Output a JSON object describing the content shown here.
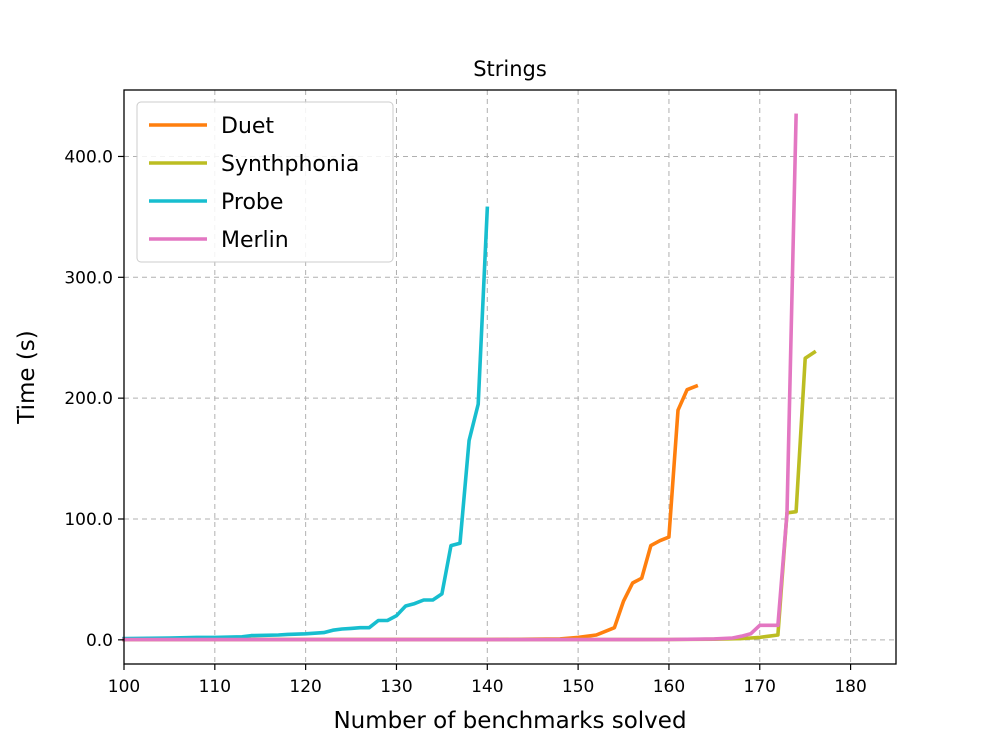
{
  "chart_data": {
    "type": "line",
    "title": "Strings",
    "xlabel": "Number of benchmarks solved",
    "ylabel": "Time (s)",
    "xlim": [
      100,
      185
    ],
    "ylim": [
      -20,
      455
    ],
    "x_ticks": [
      100,
      110,
      120,
      130,
      140,
      150,
      160,
      170,
      180
    ],
    "y_ticks": [
      0,
      100,
      200,
      300,
      400
    ],
    "x_tick_labels": [
      "100",
      "110",
      "120",
      "130",
      "140",
      "150",
      "160",
      "170",
      "180"
    ],
    "y_tick_labels": [
      "0.0",
      "100.0",
      "200.0",
      "300.0",
      "400.0"
    ],
    "grid": true,
    "legend_position": "top-left",
    "series": [
      {
        "name": "Duet",
        "color": "#ff7f0e",
        "x": [
          100,
          110,
          120,
          130,
          140,
          145,
          148,
          150,
          152,
          154,
          155,
          156,
          157,
          158,
          159,
          160,
          161,
          162,
          163
        ],
        "y": [
          0.3,
          0.3,
          0.3,
          0.3,
          0.3,
          0.5,
          0.8,
          2,
          4,
          10,
          32,
          47,
          51,
          78,
          82,
          85,
          190,
          207,
          210
        ]
      },
      {
        "name": "Synthphonia",
        "color": "#bcbd22",
        "x": [
          100,
          120,
          140,
          160,
          165,
          168,
          169,
          170,
          171,
          172,
          173,
          174,
          175,
          176
        ],
        "y": [
          0.2,
          0.2,
          0.2,
          0.3,
          0.5,
          1,
          1.5,
          2,
          3,
          4,
          105,
          106,
          233,
          238
        ]
      },
      {
        "name": "Probe",
        "color": "#17becf",
        "x": [
          100,
          105,
          108,
          110,
          113,
          114,
          117,
          118,
          120,
          121,
          122,
          123,
          124,
          125,
          126,
          127,
          128,
          129,
          130,
          131,
          132,
          133,
          134,
          135,
          136,
          137,
          138,
          139,
          140
        ],
        "y": [
          1,
          1.5,
          2,
          2,
          2.5,
          3.5,
          4,
          4.5,
          5,
          5.5,
          6,
          8,
          9,
          9.5,
          10,
          10,
          16,
          16,
          20,
          28,
          30,
          33,
          33,
          38,
          78,
          80,
          165,
          195,
          357
        ]
      },
      {
        "name": "Merlin",
        "color": "#e377c2",
        "x": [
          100,
          120,
          140,
          160,
          165,
          167,
          168,
          169,
          170,
          171,
          172,
          173,
          174
        ],
        "y": [
          0.2,
          0.2,
          0.2,
          0.3,
          0.8,
          1.5,
          3,
          5,
          12,
          12,
          12,
          105,
          434
        ]
      }
    ]
  }
}
